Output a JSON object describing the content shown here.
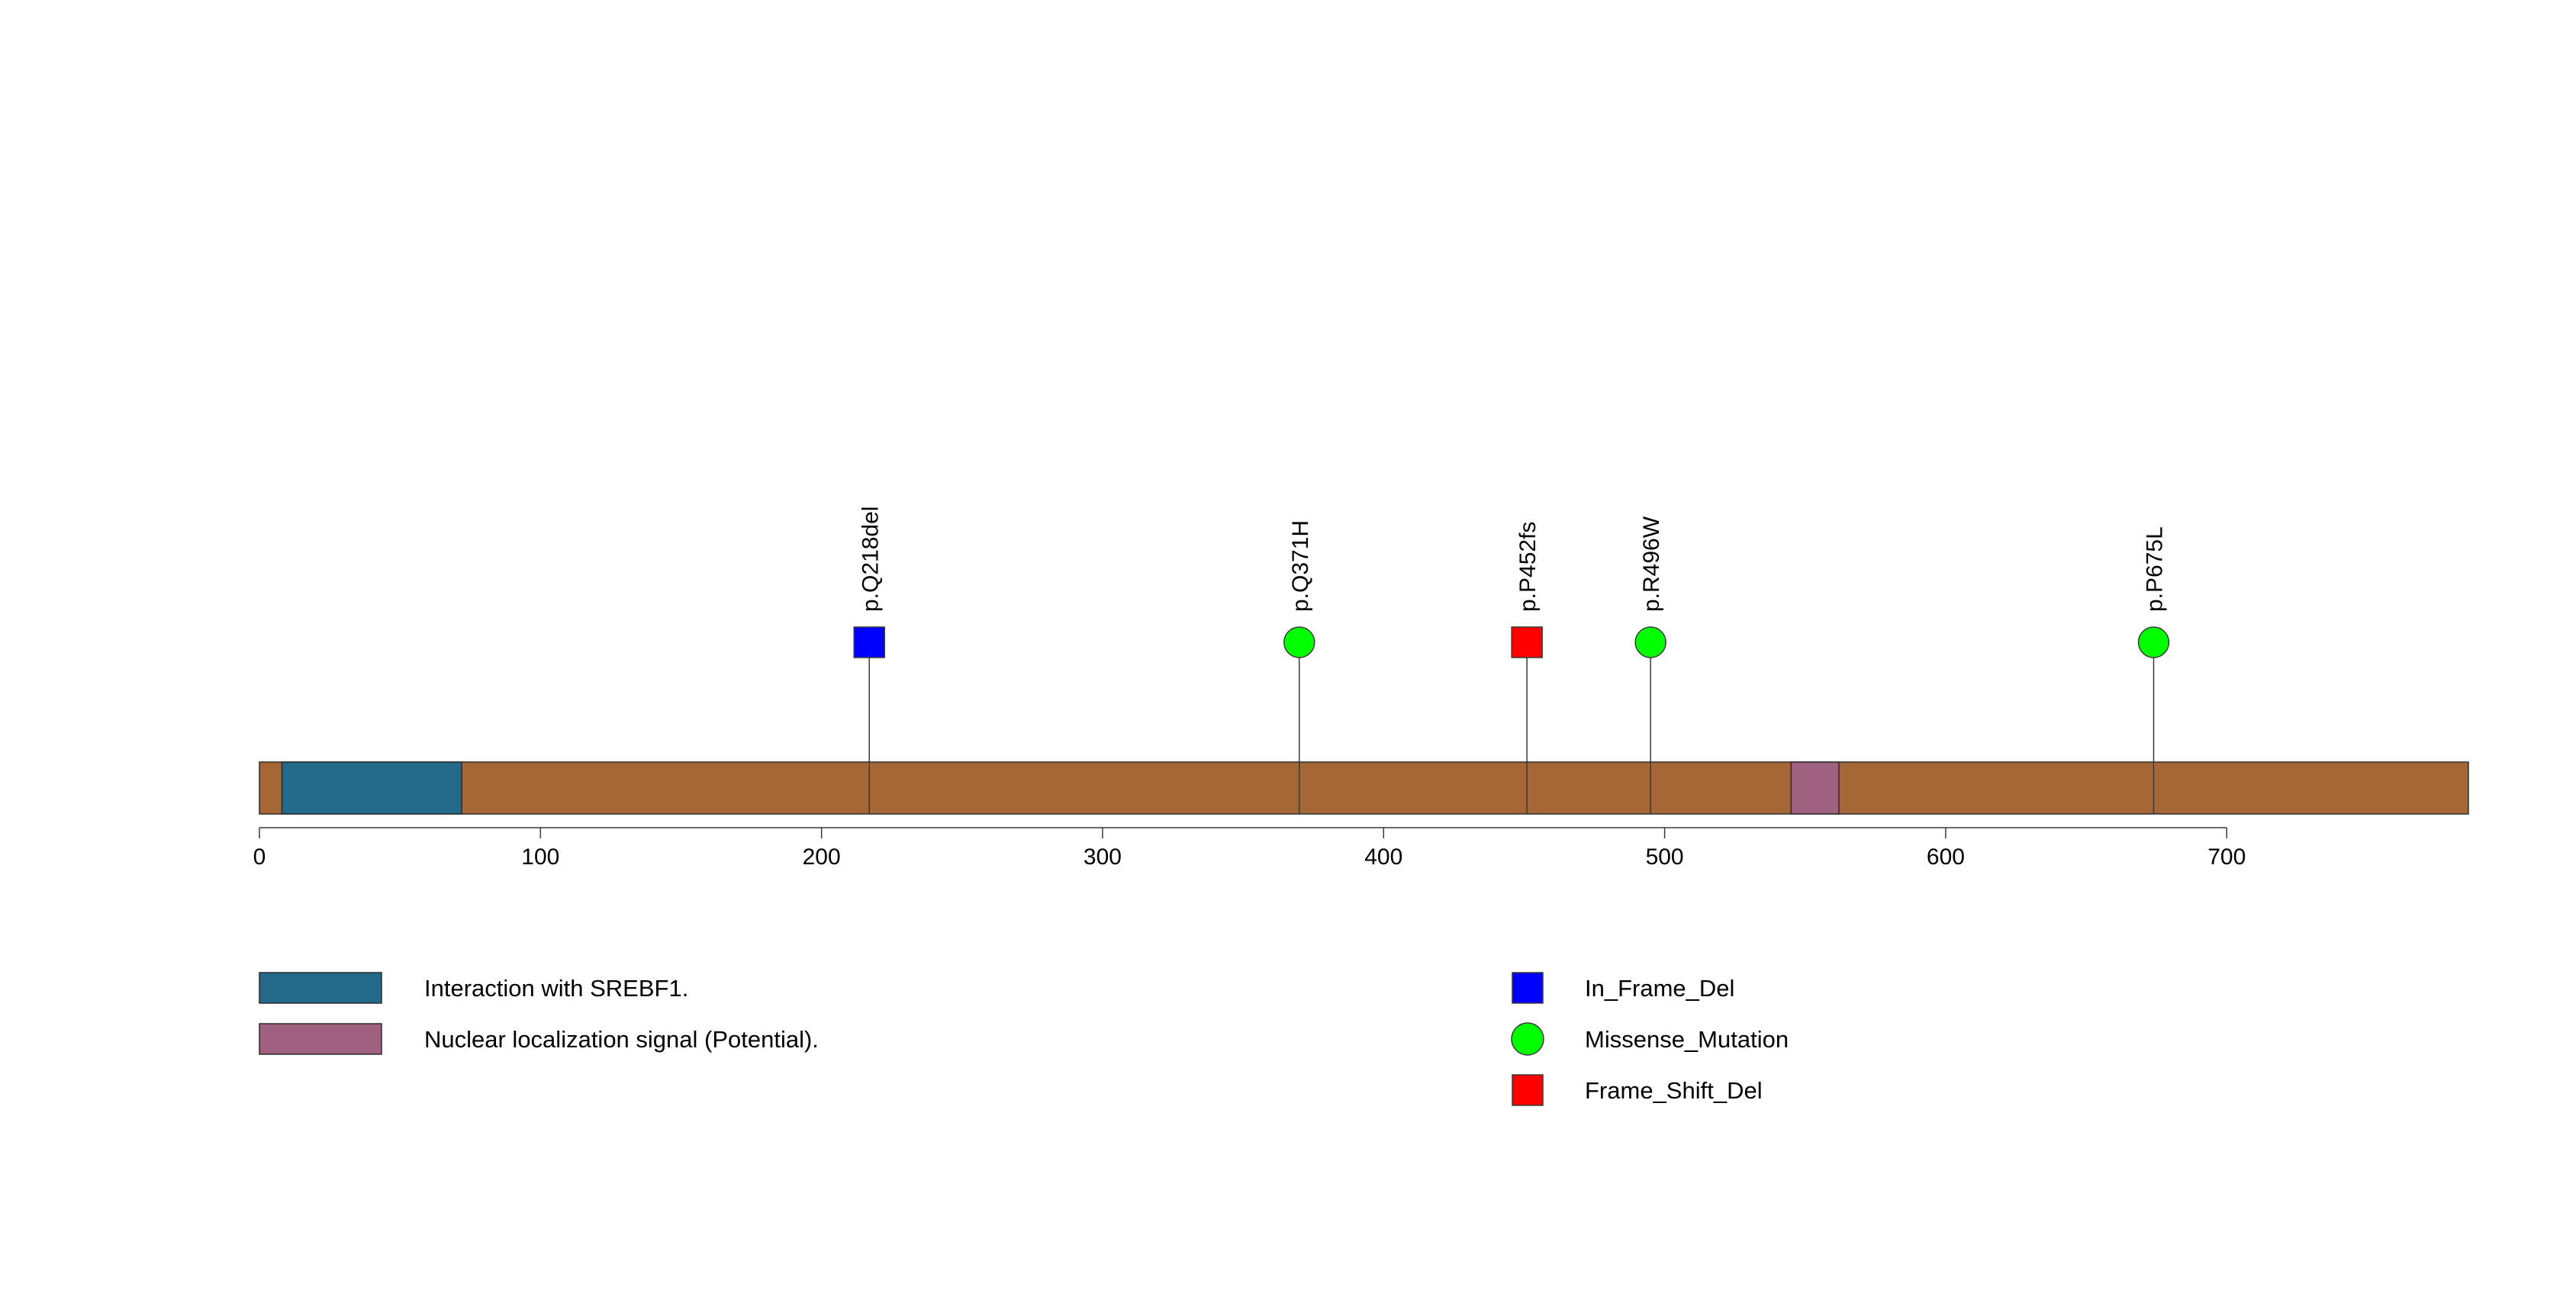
{
  "protein_length": 786,
  "axis": {
    "ticks": [
      {
        "value": 0,
        "label": "0"
      },
      {
        "value": 100,
        "label": "100"
      },
      {
        "value": 200,
        "label": "200"
      },
      {
        "value": 300,
        "label": "300"
      },
      {
        "value": 400,
        "label": "400"
      },
      {
        "value": 500,
        "label": "500"
      },
      {
        "value": 600,
        "label": "600"
      },
      {
        "value": 700,
        "label": "700"
      }
    ]
  },
  "backbone_color": "#A46735",
  "domains": [
    {
      "name": "Interaction with SREBF1.",
      "start": 8,
      "end": 72,
      "color": "#236A8A"
    },
    {
      "name": "Nuclear localization signal (Potential).",
      "start": 545,
      "end": 562,
      "color": "#9F617F"
    }
  ],
  "mutations": [
    {
      "label": "p.Q218del",
      "position": 217,
      "type": "In_Frame_Del"
    },
    {
      "label": "p.Q371H",
      "position": 370,
      "type": "Missense_Mutation"
    },
    {
      "label": "p.P452fs",
      "position": 451,
      "type": "Frame_Shift_Del"
    },
    {
      "label": "p.R496W",
      "position": 495,
      "type": "Missense_Mutation"
    },
    {
      "label": "p.P675L",
      "position": 674,
      "type": "Missense_Mutation"
    }
  ],
  "mutation_types": [
    {
      "name": "In_Frame_Del",
      "shape": "square",
      "color": "#0000FF"
    },
    {
      "name": "Missense_Mutation",
      "shape": "circle",
      "color": "#00FF00"
    },
    {
      "name": "Frame_Shift_Del",
      "shape": "square",
      "color": "#FF0000"
    }
  ]
}
